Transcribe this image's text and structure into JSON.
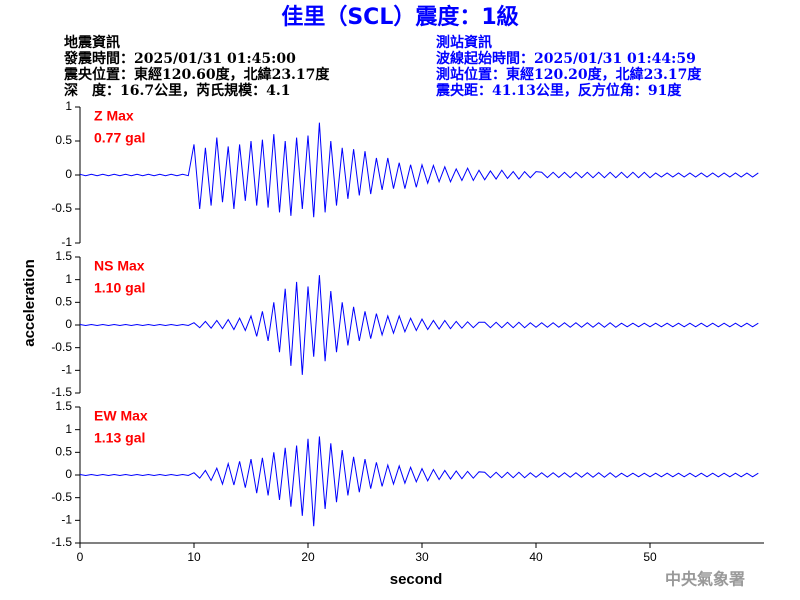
{
  "title": "佳里（SCL）震度：1級",
  "left_info": [
    "地震資訊",
    "發震時間：2025/01/31 01:45:00",
    "震央位置：東經120.60度，北緯23.17度",
    "深　度：16.7公里，芮氏規模：4.1"
  ],
  "right_info": [
    "測站資訊",
    "波線起始時間：2025/01/31 01:44:59",
    "測站位置：東經120.20度，北緯23.17度",
    "震央距：41.13公里，反方位角：91度"
  ],
  "ylabel": "acceleration",
  "footer": "中央氣象署",
  "chart_data": [
    {
      "type": "line",
      "annotations": [
        "Z Max",
        "0.77 gal"
      ],
      "color": "#0000ff",
      "xlim": [
        0,
        60
      ],
      "ylim": [
        -1,
        1
      ],
      "yticks": [
        -1,
        -0.5,
        0,
        0.5,
        1
      ],
      "x": [
        0,
        0.5,
        1,
        1.5,
        2,
        2.5,
        3,
        3.5,
        4,
        4.5,
        5,
        5.5,
        6,
        6.5,
        7,
        7.5,
        8,
        8.5,
        9,
        9.5,
        10,
        10.5,
        11,
        11.5,
        12,
        12.5,
        13,
        13.5,
        14,
        14.5,
        15,
        15.5,
        16,
        16.5,
        17,
        17.5,
        18,
        18.5,
        19,
        19.5,
        20,
        20.5,
        21,
        21.5,
        22,
        22.5,
        23,
        23.5,
        24,
        24.5,
        25,
        25.5,
        26,
        26.5,
        27,
        27.5,
        28,
        28.5,
        29,
        29.5,
        30,
        30.5,
        31,
        31.5,
        32,
        32.5,
        33,
        33.5,
        34,
        34.5,
        35,
        35.5,
        36,
        36.5,
        37,
        37.5,
        38,
        38.5,
        39,
        39.5,
        40,
        40.5,
        41,
        41.5,
        42,
        42.5,
        43,
        43.5,
        44,
        44.5,
        45,
        45.5,
        46,
        46.5,
        47,
        47.5,
        48,
        48.5,
        49,
        49.5,
        50,
        50.5,
        51,
        51.5,
        52,
        52.5,
        53,
        53.5,
        54,
        54.5,
        55,
        55.5,
        56,
        56.5,
        57,
        57.5,
        58,
        58.5,
        59,
        59.5
      ],
      "values": [
        0.01,
        -0.01,
        0.01,
        -0.01,
        0.01,
        -0.01,
        0.01,
        -0.01,
        0.01,
        -0.01,
        0.01,
        -0.01,
        0.01,
        -0.01,
        0.01,
        -0.01,
        0.01,
        -0.01,
        0.01,
        -0.01,
        0.45,
        -0.5,
        0.4,
        -0.45,
        0.55,
        -0.4,
        0.42,
        -0.5,
        0.45,
        -0.38,
        0.5,
        -0.45,
        0.52,
        -0.48,
        0.6,
        -0.55,
        0.5,
        -0.6,
        0.55,
        -0.5,
        0.58,
        -0.62,
        0.77,
        -0.55,
        0.5,
        -0.45,
        0.4,
        -0.35,
        0.38,
        -0.3,
        0.35,
        -0.28,
        0.25,
        -0.22,
        0.25,
        -0.2,
        0.18,
        -0.2,
        0.15,
        -0.18,
        0.15,
        -0.12,
        0.14,
        -0.1,
        0.12,
        -0.1,
        0.09,
        -0.08,
        0.1,
        -0.08,
        0.07,
        -0.07,
        0.06,
        -0.06,
        0.07,
        -0.05,
        0.05,
        -0.06,
        0.05,
        -0.04,
        0.05,
        0.04,
        -0.04,
        0.04,
        -0.04,
        0.04,
        -0.04,
        0.04,
        -0.04,
        0.04,
        -0.04,
        0.04,
        -0.04,
        0.04,
        -0.04,
        0.04,
        -0.04,
        0.04,
        -0.04,
        0.04,
        -0.04,
        0.03,
        -0.03,
        0.03,
        -0.03,
        0.03,
        -0.03,
        0.03,
        -0.03,
        0.03,
        -0.03,
        0.03,
        -0.03,
        0.03,
        -0.03,
        0.03,
        -0.03,
        0.03,
        -0.03,
        0.03
      ]
    },
    {
      "type": "line",
      "annotations": [
        "NS Max",
        "1.10 gal"
      ],
      "color": "#0000ff",
      "xlim": [
        0,
        60
      ],
      "ylim": [
        -1.5,
        1.5
      ],
      "yticks": [
        -1.5,
        -1,
        -0.5,
        0,
        0.5,
        1,
        1.5
      ],
      "x": [
        0,
        0.5,
        1,
        1.5,
        2,
        2.5,
        3,
        3.5,
        4,
        4.5,
        5,
        5.5,
        6,
        6.5,
        7,
        7.5,
        8,
        8.5,
        9,
        9.5,
        10,
        10.5,
        11,
        11.5,
        12,
        12.5,
        13,
        13.5,
        14,
        14.5,
        15,
        15.5,
        16,
        16.5,
        17,
        17.5,
        18,
        18.5,
        19,
        19.5,
        20,
        20.5,
        21,
        21.5,
        22,
        22.5,
        23,
        23.5,
        24,
        24.5,
        25,
        25.5,
        26,
        26.5,
        27,
        27.5,
        28,
        28.5,
        29,
        29.5,
        30,
        30.5,
        31,
        31.5,
        32,
        32.5,
        33,
        33.5,
        34,
        34.5,
        35,
        35.5,
        36,
        36.5,
        37,
        37.5,
        38,
        38.5,
        39,
        39.5,
        40,
        40.5,
        41,
        41.5,
        42,
        42.5,
        43,
        43.5,
        44,
        44.5,
        45,
        45.5,
        46,
        46.5,
        47,
        47.5,
        48,
        48.5,
        49,
        49.5,
        50,
        50.5,
        51,
        51.5,
        52,
        52.5,
        53,
        53.5,
        54,
        54.5,
        55,
        55.5,
        56,
        56.5,
        57,
        57.5,
        58,
        58.5,
        59,
        59.5
      ],
      "values": [
        0.01,
        -0.01,
        0.01,
        -0.01,
        0.01,
        -0.01,
        0.01,
        -0.01,
        0.01,
        -0.01,
        0.01,
        -0.01,
        0.01,
        -0.01,
        0.01,
        -0.01,
        0.01,
        -0.01,
        0.01,
        -0.01,
        0.05,
        -0.06,
        0.08,
        -0.07,
        0.1,
        -0.08,
        0.12,
        -0.1,
        0.15,
        -0.12,
        0.2,
        -0.25,
        0.3,
        -0.35,
        0.5,
        -0.6,
        0.8,
        -0.9,
        0.95,
        -1.1,
        0.85,
        -0.7,
        1.1,
        -0.8,
        0.75,
        -0.6,
        0.5,
        -0.45,
        0.4,
        -0.35,
        0.3,
        -0.3,
        0.25,
        -0.22,
        0.2,
        -0.18,
        0.2,
        -0.15,
        0.15,
        -0.12,
        0.13,
        -0.1,
        0.1,
        -0.09,
        0.1,
        -0.08,
        0.08,
        -0.07,
        0.07,
        -0.06,
        0.06,
        0.06,
        -0.06,
        0.06,
        -0.06,
        0.06,
        -0.06,
        0.06,
        -0.06,
        0.05,
        -0.05,
        0.05,
        -0.05,
        0.05,
        -0.05,
        0.05,
        -0.05,
        0.05,
        -0.05,
        0.05,
        -0.05,
        0.05,
        -0.05,
        0.05,
        -0.05,
        0.04,
        -0.04,
        0.04,
        -0.04,
        0.04,
        -0.04,
        0.04,
        -0.04,
        0.04,
        -0.04,
        0.04,
        -0.04,
        0.04,
        -0.04,
        0.04,
        -0.04,
        0.04,
        -0.04,
        0.04,
        -0.04,
        0.04,
        -0.04,
        0.04,
        -0.04,
        0.04
      ]
    },
    {
      "type": "line",
      "annotations": [
        "EW Max",
        "1.13 gal"
      ],
      "color": "#0000ff",
      "xlim": [
        0,
        60
      ],
      "ylim": [
        -1.5,
        1.5
      ],
      "yticks": [
        -1.5,
        -1,
        -0.5,
        0,
        0.5,
        1,
        1.5
      ],
      "xticks": [
        0,
        10,
        20,
        30,
        40,
        50
      ],
      "xlabel": "second",
      "x": [
        0,
        0.5,
        1,
        1.5,
        2,
        2.5,
        3,
        3.5,
        4,
        4.5,
        5,
        5.5,
        6,
        6.5,
        7,
        7.5,
        8,
        8.5,
        9,
        9.5,
        10,
        10.5,
        11,
        11.5,
        12,
        12.5,
        13,
        13.5,
        14,
        14.5,
        15,
        15.5,
        16,
        16.5,
        17,
        17.5,
        18,
        18.5,
        19,
        19.5,
        20,
        20.5,
        21,
        21.5,
        22,
        22.5,
        23,
        23.5,
        24,
        24.5,
        25,
        25.5,
        26,
        26.5,
        27,
        27.5,
        28,
        28.5,
        29,
        29.5,
        30,
        30.5,
        31,
        31.5,
        32,
        32.5,
        33,
        33.5,
        34,
        34.5,
        35,
        35.5,
        36,
        36.5,
        37,
        37.5,
        38,
        38.5,
        39,
        39.5,
        40,
        40.5,
        41,
        41.5,
        42,
        42.5,
        43,
        43.5,
        44,
        44.5,
        45,
        45.5,
        46,
        46.5,
        47,
        47.5,
        48,
        48.5,
        49,
        49.5,
        50,
        50.5,
        51,
        51.5,
        52,
        52.5,
        53,
        53.5,
        54,
        54.5,
        55,
        55.5,
        56,
        56.5,
        57,
        57.5,
        58,
        58.5,
        59,
        59.5
      ],
      "values": [
        0.01,
        -0.01,
        0.01,
        -0.01,
        0.01,
        -0.01,
        0.01,
        -0.01,
        0.01,
        -0.01,
        0.01,
        -0.01,
        0.01,
        -0.01,
        0.01,
        -0.01,
        0.01,
        -0.01,
        0.01,
        -0.01,
        0.05,
        -0.07,
        0.1,
        -0.12,
        0.15,
        -0.2,
        0.25,
        -0.22,
        0.3,
        -0.28,
        0.35,
        -0.4,
        0.38,
        -0.45,
        0.5,
        -0.55,
        0.6,
        -0.7,
        0.65,
        -0.9,
        0.8,
        -1.13,
        0.85,
        -0.75,
        0.7,
        -0.6,
        0.55,
        -0.45,
        0.4,
        -0.38,
        0.35,
        -0.3,
        0.28,
        -0.25,
        0.22,
        -0.2,
        0.2,
        -0.18,
        0.17,
        -0.15,
        0.14,
        -0.13,
        0.12,
        -0.1,
        0.1,
        -0.09,
        0.09,
        -0.08,
        0.08,
        -0.07,
        0.07,
        0.06,
        -0.06,
        0.06,
        -0.06,
        0.06,
        -0.06,
        0.06,
        -0.06,
        0.05,
        -0.05,
        0.05,
        -0.05,
        0.05,
        -0.05,
        0.05,
        -0.05,
        0.05,
        -0.05,
        0.05,
        -0.05,
        0.05,
        -0.05,
        0.05,
        -0.05,
        0.04,
        -0.04,
        0.04,
        -0.04,
        0.04,
        -0.04,
        0.04,
        -0.04,
        0.04,
        -0.04,
        0.04,
        -0.04,
        0.04,
        -0.04,
        0.04,
        -0.04,
        0.04,
        -0.04,
        0.04,
        -0.04,
        0.04,
        -0.04,
        0.04,
        -0.04,
        0.04
      ]
    }
  ]
}
